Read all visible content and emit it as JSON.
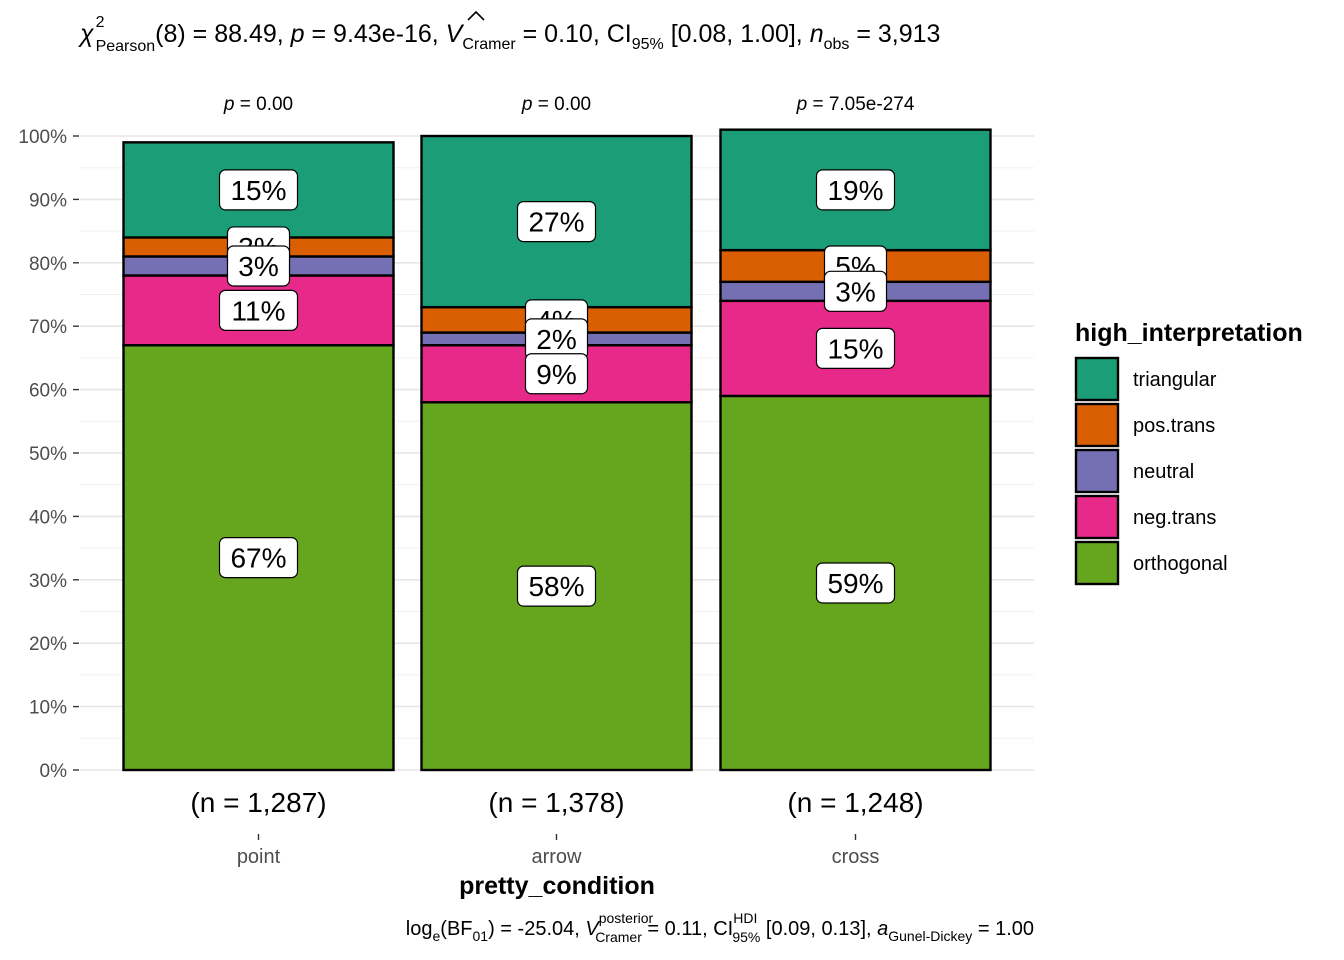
{
  "chart_data": {
    "type": "bar",
    "stacked": true,
    "percent": true,
    "title": "",
    "subtitle": {
      "chi_symbol": "χ",
      "chi_sup": "2",
      "chi_sub": "Pearson",
      "df": "(8) = 88.49, ",
      "p_sym": "p",
      "p_val": " = 9.43e-16, ",
      "v_hat": "V",
      "v_sub": "Cramer",
      "v_val": " = 0.10, CI",
      "ci_sub": "95%",
      "ci_val": " [0.08, 1.00], ",
      "n_sym": "n",
      "n_sub": "obs",
      "n_val": " = 3,913"
    },
    "caption": {
      "log": "log",
      "log_sub": "e",
      "bf": "(BF",
      "bf_sub": "01",
      "bf_val": ") = -25.04, ",
      "v_hat": "V",
      "v_sup": "posterior",
      "v_sub": "Cramer",
      "v_val": " = 0.11, CI",
      "ci_sup": "HDI",
      "ci_sub": "95%",
      "ci_val": " [0.09, 0.13], ",
      "a_sym": "a",
      "a_sub": "Gunel-Dickey",
      "a_val": " = 1.00"
    },
    "xlabel": "pretty_condition",
    "ylabel": "",
    "ylim": [
      0,
      100
    ],
    "y_ticks": [
      "0%",
      "10%",
      "20%",
      "30%",
      "40%",
      "50%",
      "60%",
      "70%",
      "80%",
      "90%",
      "100%"
    ],
    "grid": true,
    "legend_position": "right",
    "legend_title": "high_interpretation",
    "categories": [
      "point",
      "arrow",
      "cross"
    ],
    "n_labels": [
      "(n = 1,287)",
      "(n = 1,378)",
      "(n = 1,248)"
    ],
    "p_labels": [
      {
        "sym": "p",
        "val": " = 0.00"
      },
      {
        "sym": "p",
        "val": " = 0.00"
      },
      {
        "sym": "p",
        "val": " = 7.05e-274"
      }
    ],
    "series": [
      {
        "name": "triangular",
        "color": "#1b9e77",
        "values": [
          15,
          27,
          19
        ],
        "labels": [
          "15%",
          "27%",
          "19%"
        ]
      },
      {
        "name": "pos.trans",
        "color": "#d95f02",
        "values": [
          3,
          4,
          5
        ],
        "labels": [
          "3%",
          "4%",
          "5%"
        ]
      },
      {
        "name": "neutral",
        "color": "#7570b3",
        "values": [
          3,
          2,
          3
        ],
        "labels": [
          "3%",
          "2%",
          "3%"
        ]
      },
      {
        "name": "neg.trans",
        "color": "#e7298a",
        "values": [
          11,
          9,
          15
        ],
        "labels": [
          "11%",
          "9%",
          "15%"
        ]
      },
      {
        "name": "orthogonal",
        "color": "#66a61e",
        "values": [
          67,
          58,
          59
        ],
        "labels": [
          "67%",
          "58%",
          "59%"
        ]
      }
    ]
  }
}
